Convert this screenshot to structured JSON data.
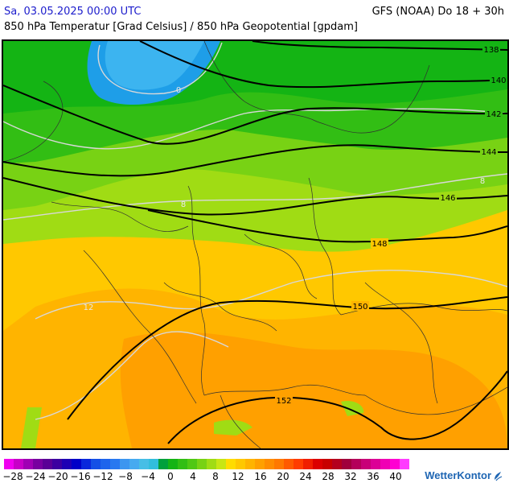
{
  "header": {
    "date": "Sa, 03.05.2025 00:00 UTC",
    "model": "GFS (NOAA) Do 18 + 30h",
    "subtitle": "850 hPa Temperatur [Grad Celsius] / 850 hPa Geopotential [gpdam]"
  },
  "map": {
    "contours": {
      "geopotential": [
        "138",
        "140",
        "142",
        "144",
        "146",
        "148",
        "150",
        "152"
      ],
      "temperature": [
        "0",
        "8",
        "12"
      ]
    }
  },
  "legend": {
    "ticks": [
      "−28",
      "−24",
      "−20",
      "−16",
      "−12",
      "−8",
      "−4",
      "0",
      "4",
      "8",
      "12",
      "16",
      "20",
      "24",
      "28",
      "32",
      "36",
      "40"
    ],
    "colors": [
      "#f000f0",
      "#c800c8",
      "#a000b4",
      "#7800a0",
      "#5a0096",
      "#3c00a0",
      "#1e00b4",
      "#0000c8",
      "#0a28dc",
      "#1450e6",
      "#1e64ec",
      "#2878f0",
      "#3c96f0",
      "#46aaf0",
      "#46bee6",
      "#32bedc",
      "#00a03c",
      "#14b414",
      "#32be14",
      "#50c814",
      "#78d214",
      "#a0dc14",
      "#c8e614",
      "#ffdc00",
      "#ffc800",
      "#ffb400",
      "#ffa000",
      "#ff8c00",
      "#ff7800",
      "#ff5a00",
      "#ff3c00",
      "#f01e00",
      "#dc0000",
      "#c80000",
      "#b4001e",
      "#a0003c",
      "#b4005a",
      "#c80078",
      "#dc0096",
      "#f000b4",
      "#ff00d2",
      "#ff3cff"
    ],
    "brand": "WetterKontor"
  }
}
